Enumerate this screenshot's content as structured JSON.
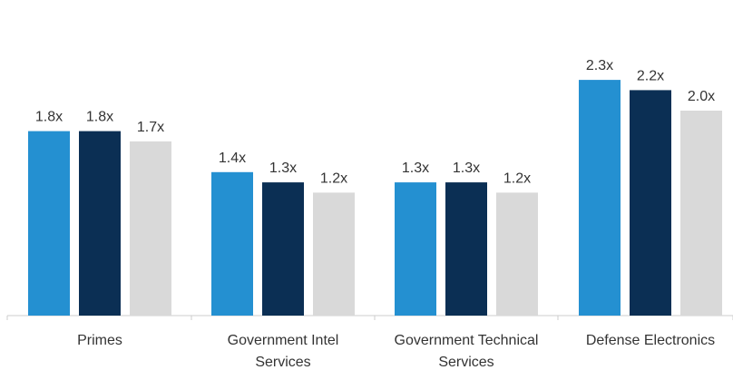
{
  "chart_data": {
    "type": "bar",
    "categories": [
      "Primes",
      "Government Intel Services",
      "Government Technical Services",
      "Defense Electronics"
    ],
    "category_lines": [
      [
        "Primes"
      ],
      [
        "Government Intel",
        "Services"
      ],
      [
        "Government Technical",
        "Services"
      ],
      [
        "Defense Electronics"
      ]
    ],
    "series": [
      {
        "values": [
          1.8,
          1.4,
          1.3,
          2.3
        ],
        "labels": [
          "1.8x",
          "1.4x",
          "1.3x",
          "2.3x"
        ],
        "color": "#2490D1"
      },
      {
        "values": [
          1.8,
          1.3,
          1.3,
          2.2
        ],
        "labels": [
          "1.8x",
          "1.3x",
          "1.3x",
          "2.2x"
        ],
        "color": "#0B2F54"
      },
      {
        "values": [
          1.7,
          1.2,
          1.2,
          2.0
        ],
        "labels": [
          "1.7x",
          "1.2x",
          "1.2x",
          "2.0x"
        ],
        "color": "#D9D9D9"
      }
    ],
    "ylim": [
      0,
      2.6
    ],
    "grid": false,
    "legend": "none",
    "title": "",
    "xlabel": "",
    "ylabel": ""
  }
}
